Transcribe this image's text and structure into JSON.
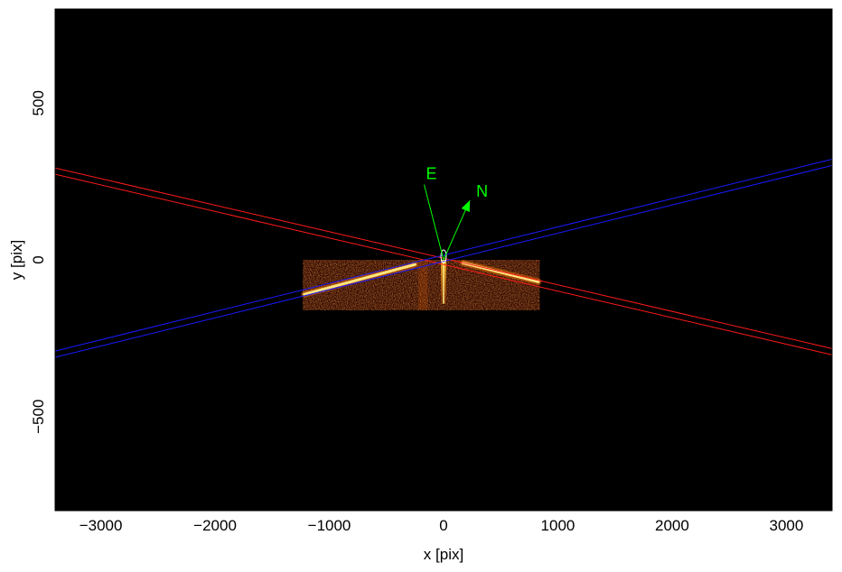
{
  "chart_data": {
    "type": "heatmap",
    "xlabel": "x [pix]",
    "ylabel": "y [pix]",
    "xlim": [
      -3400,
      3400
    ],
    "ylim": [
      -800,
      800
    ],
    "x_ticks": [
      -3000,
      -2000,
      -1000,
      0,
      1000,
      2000,
      3000
    ],
    "x_tick_labels": [
      "−3000",
      "−2000",
      "−1000",
      "0",
      "1000",
      "2000",
      "3000"
    ],
    "y_ticks": [
      -500,
      0,
      500
    ],
    "y_tick_labels": [
      "−500",
      "0",
      "500"
    ],
    "background_color": "#000000",
    "image": {
      "x_range": [
        -1230,
        840
      ],
      "y_range": [
        -160,
        0
      ],
      "colormap": "heat",
      "streaks": [
        {
          "name": "left-order",
          "from": [
            -1220,
            -110
          ],
          "to": [
            -250,
            -15
          ]
        },
        {
          "name": "right-order",
          "from": [
            170,
            -10
          ],
          "to": [
            830,
            -70
          ]
        },
        {
          "name": "zero-order",
          "from": [
            0,
            0
          ],
          "to": [
            0,
            -140
          ]
        }
      ]
    },
    "lines": [
      {
        "color": "#ff1a1a",
        "slope": -0.0847,
        "intercepts": [
          -3,
          -3
        ],
        "offsets": [
          5,
          -15
        ]
      },
      {
        "color": "#1a1aff",
        "slope": 0.09,
        "offsets": [
          -5,
          15
        ]
      }
    ],
    "compass": {
      "origin": [
        0,
        0
      ],
      "color": "#00ff00",
      "east": {
        "label": "E",
        "tip": [
          -170,
          240
        ]
      },
      "north": {
        "label": "N",
        "tip": [
          230,
          190
        ]
      }
    }
  }
}
